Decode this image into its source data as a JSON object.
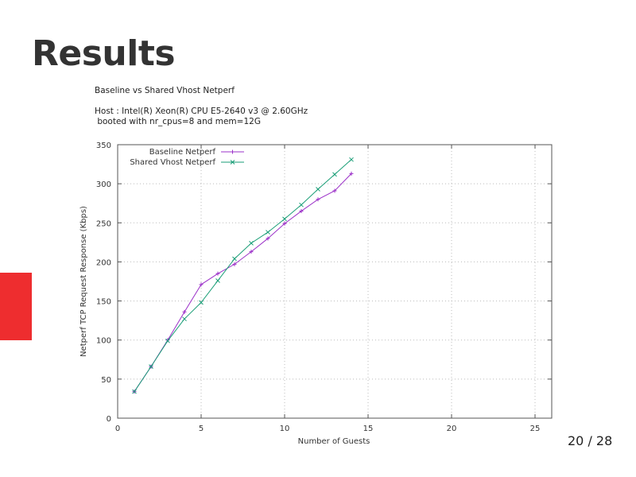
{
  "slide": {
    "title": "Results",
    "page_indicator": "20 / 28",
    "accent_color": "#ee2d2f"
  },
  "figure": {
    "heading": "Baseline vs Shared Vhost Netperf",
    "host_line": "Host : Intel(R) Xeon(R) CPU E5-2640 v3 @ 2.60GHz",
    "boot_line": " booted with nr_cpus=8 and mem=12G"
  },
  "chart_data": {
    "type": "line",
    "title": "Baseline vs Shared Vhost Netperf",
    "xlabel": "Number of Guests",
    "ylabel": "Netperf TCP Request Response (Kbps)",
    "xlim": [
      0,
      26
    ],
    "ylim": [
      0,
      350
    ],
    "xticks": [
      0,
      5,
      10,
      15,
      20,
      25
    ],
    "yticks": [
      0,
      50,
      100,
      150,
      200,
      250,
      300,
      350
    ],
    "grid": true,
    "legend_position": "top-left-inside",
    "x": [
      1,
      2,
      3,
      4,
      5,
      6,
      7,
      8,
      9,
      10,
      11,
      12,
      13,
      14
    ],
    "series": [
      {
        "name": "Baseline Netperf",
        "color": "#9b30c8",
        "marker": "+",
        "values": [
          34,
          66,
          100,
          136,
          171,
          185,
          197,
          213,
          230,
          249,
          265,
          280,
          291,
          313
        ]
      },
      {
        "name": "Shared Vhost Netperf",
        "color": "#1a9e77",
        "marker": "x",
        "values": [
          34,
          66,
          99,
          127,
          148,
          176,
          204,
          224,
          238,
          255,
          273,
          293,
          312,
          331
        ]
      }
    ]
  }
}
